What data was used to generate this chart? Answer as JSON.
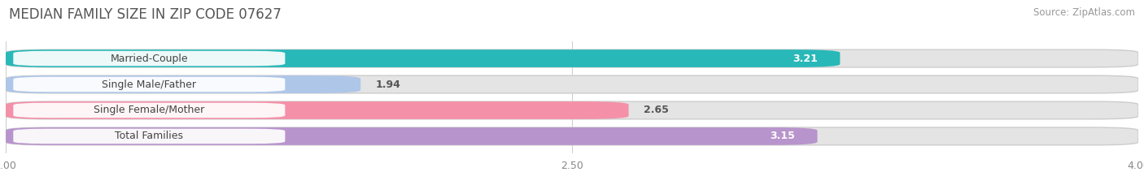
{
  "title": "MEDIAN FAMILY SIZE IN ZIP CODE 07627",
  "source": "Source: ZipAtlas.com",
  "categories": [
    "Married-Couple",
    "Single Male/Father",
    "Single Female/Mother",
    "Total Families"
  ],
  "values": [
    3.21,
    1.94,
    2.65,
    3.15
  ],
  "bar_colors": [
    "#29b8b8",
    "#aec6e8",
    "#f490a8",
    "#b894cc"
  ],
  "xlim": [
    1.0,
    4.0
  ],
  "xticks": [
    1.0,
    2.5,
    4.0
  ],
  "background_color": "#ffffff",
  "bar_track_color": "#e4e4e4",
  "bar_separator_color": "#d0d0d0",
  "title_fontsize": 12,
  "source_fontsize": 8.5,
  "tick_fontsize": 9,
  "label_fontsize": 9,
  "value_fontsize": 9
}
